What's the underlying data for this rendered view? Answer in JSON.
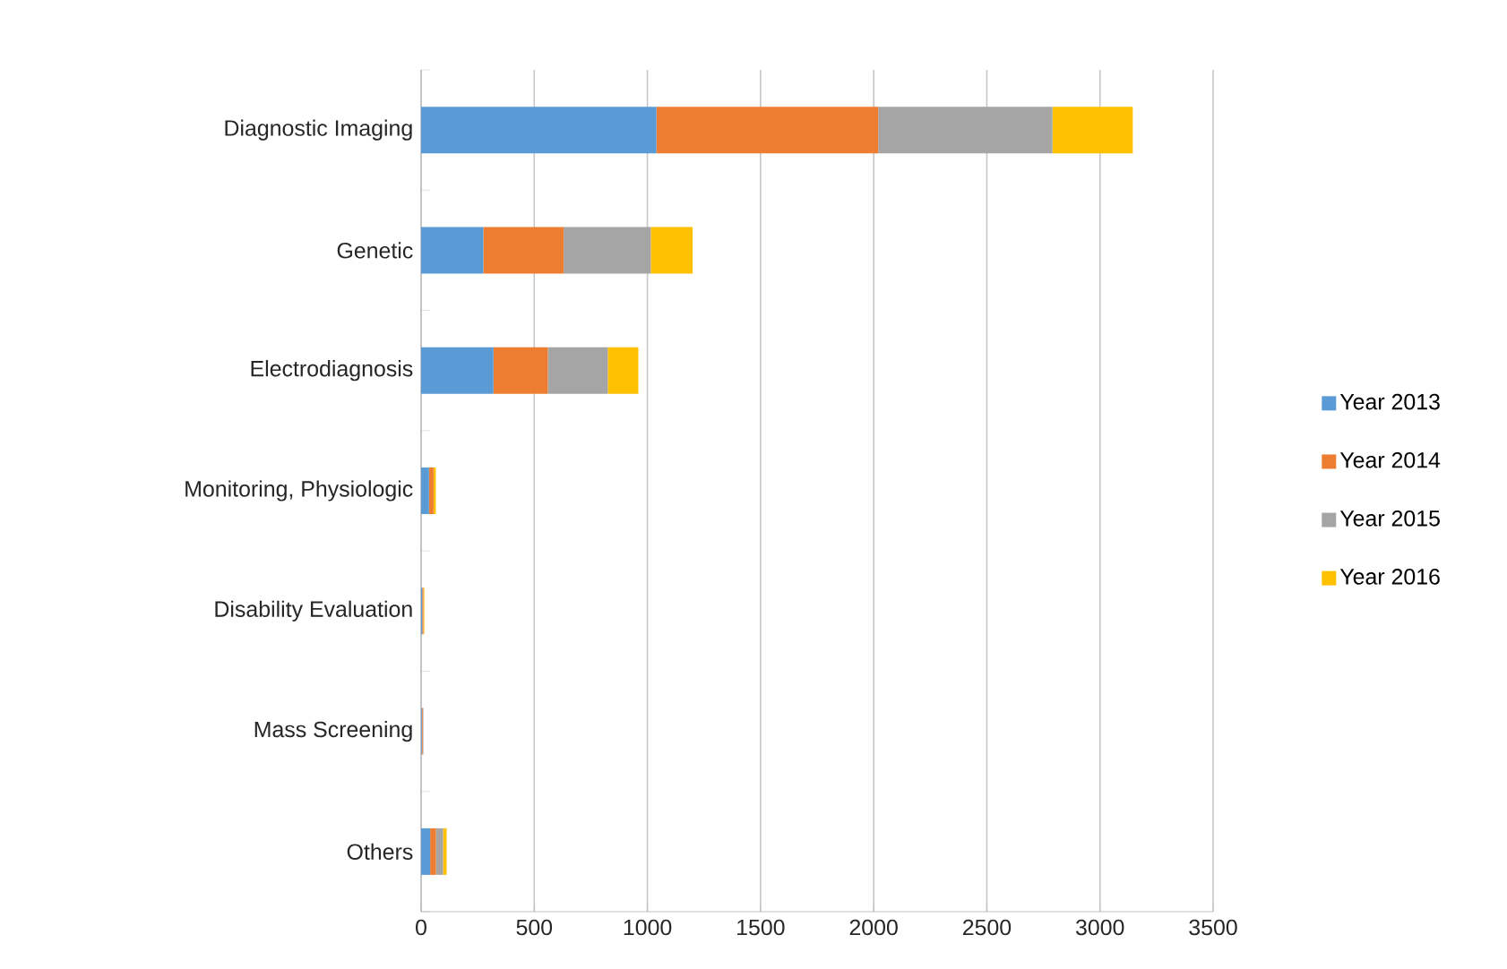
{
  "chart_data": {
    "type": "bar",
    "orientation": "horizontal",
    "stacked": true,
    "categories": [
      "Diagnostic Imaging",
      "Genetic",
      "Electrodiagnosis",
      "Monitoring, Physiologic",
      "Disability Evaluation",
      "Mass Screening",
      "Others"
    ],
    "series": [
      {
        "name": "Year 2013",
        "color": "#5b9bd5",
        "values": [
          1040,
          275,
          320,
          35,
          5,
          3,
          40
        ]
      },
      {
        "name": "Year 2014",
        "color": "#ed7d31",
        "values": [
          980,
          355,
          240,
          20,
          5,
          4,
          26
        ]
      },
      {
        "name": "Year 2015",
        "color": "#a5a5a5",
        "values": [
          770,
          385,
          265,
          null,
          null,
          3,
          31
        ]
      },
      {
        "name": "Year 2016",
        "color": "#ffc000",
        "values": [
          355,
          185,
          135,
          10,
          4,
          null,
          16
        ]
      }
    ],
    "xlim": [
      0,
      3500
    ],
    "xticks": [
      0,
      500,
      1000,
      1500,
      2000,
      2500,
      3000,
      3500
    ],
    "grid": "x",
    "legend": "right"
  }
}
